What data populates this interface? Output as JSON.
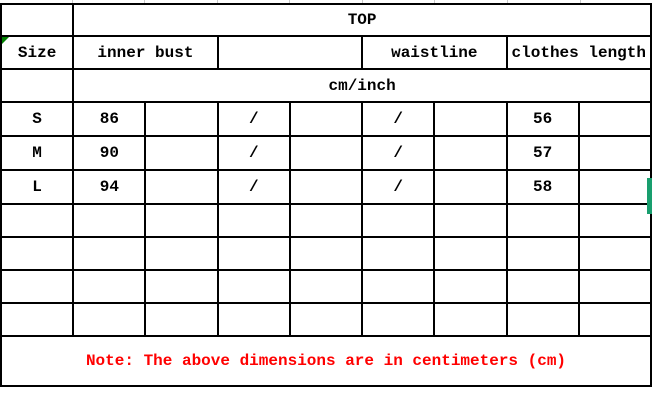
{
  "chart_data": {
    "type": "table",
    "title": "TOP",
    "unit": "cm/inch",
    "columns": [
      "Size",
      "inner bust",
      "waistline",
      "clothes length"
    ],
    "rows": [
      {
        "size": "S",
        "inner_bust": 86,
        "waistline": "/",
        "clothes_length": 56
      },
      {
        "size": "M",
        "inner_bust": 90,
        "waistline": "/",
        "clothes_length": 57
      },
      {
        "size": "L",
        "inner_bust": 94,
        "waistline": "/",
        "clothes_length": 58
      }
    ],
    "note": "Note: The above dimensions are in centimeters (cm)"
  },
  "table": {
    "top_header": "TOP",
    "columns_row": [
      {
        "label": "Size"
      },
      {
        "label": "inner bust"
      },
      {
        "label": ""
      },
      {
        "label": "waistline"
      },
      {
        "label": "clothes length"
      }
    ],
    "unit_row": "cm/inch",
    "data_rows": [
      [
        "S",
        "86",
        "",
        "/",
        "",
        "/",
        "",
        "56",
        ""
      ],
      [
        "M",
        "90",
        "",
        "/",
        "",
        "/",
        "",
        "57",
        ""
      ],
      [
        "L",
        "94",
        "",
        "/",
        "",
        "/",
        "",
        "58",
        ""
      ]
    ],
    "empty_row_count": 4,
    "note": "Note: The above dimensions are in centimeters (cm)"
  },
  "colors": {
    "border": "#000000",
    "note_red": "#ff0000",
    "marker_bar_green": "#189e6e",
    "corner_triangle_green": "#008000",
    "gridline_gray": "#c9c9c9",
    "background": "#ffffff"
  }
}
